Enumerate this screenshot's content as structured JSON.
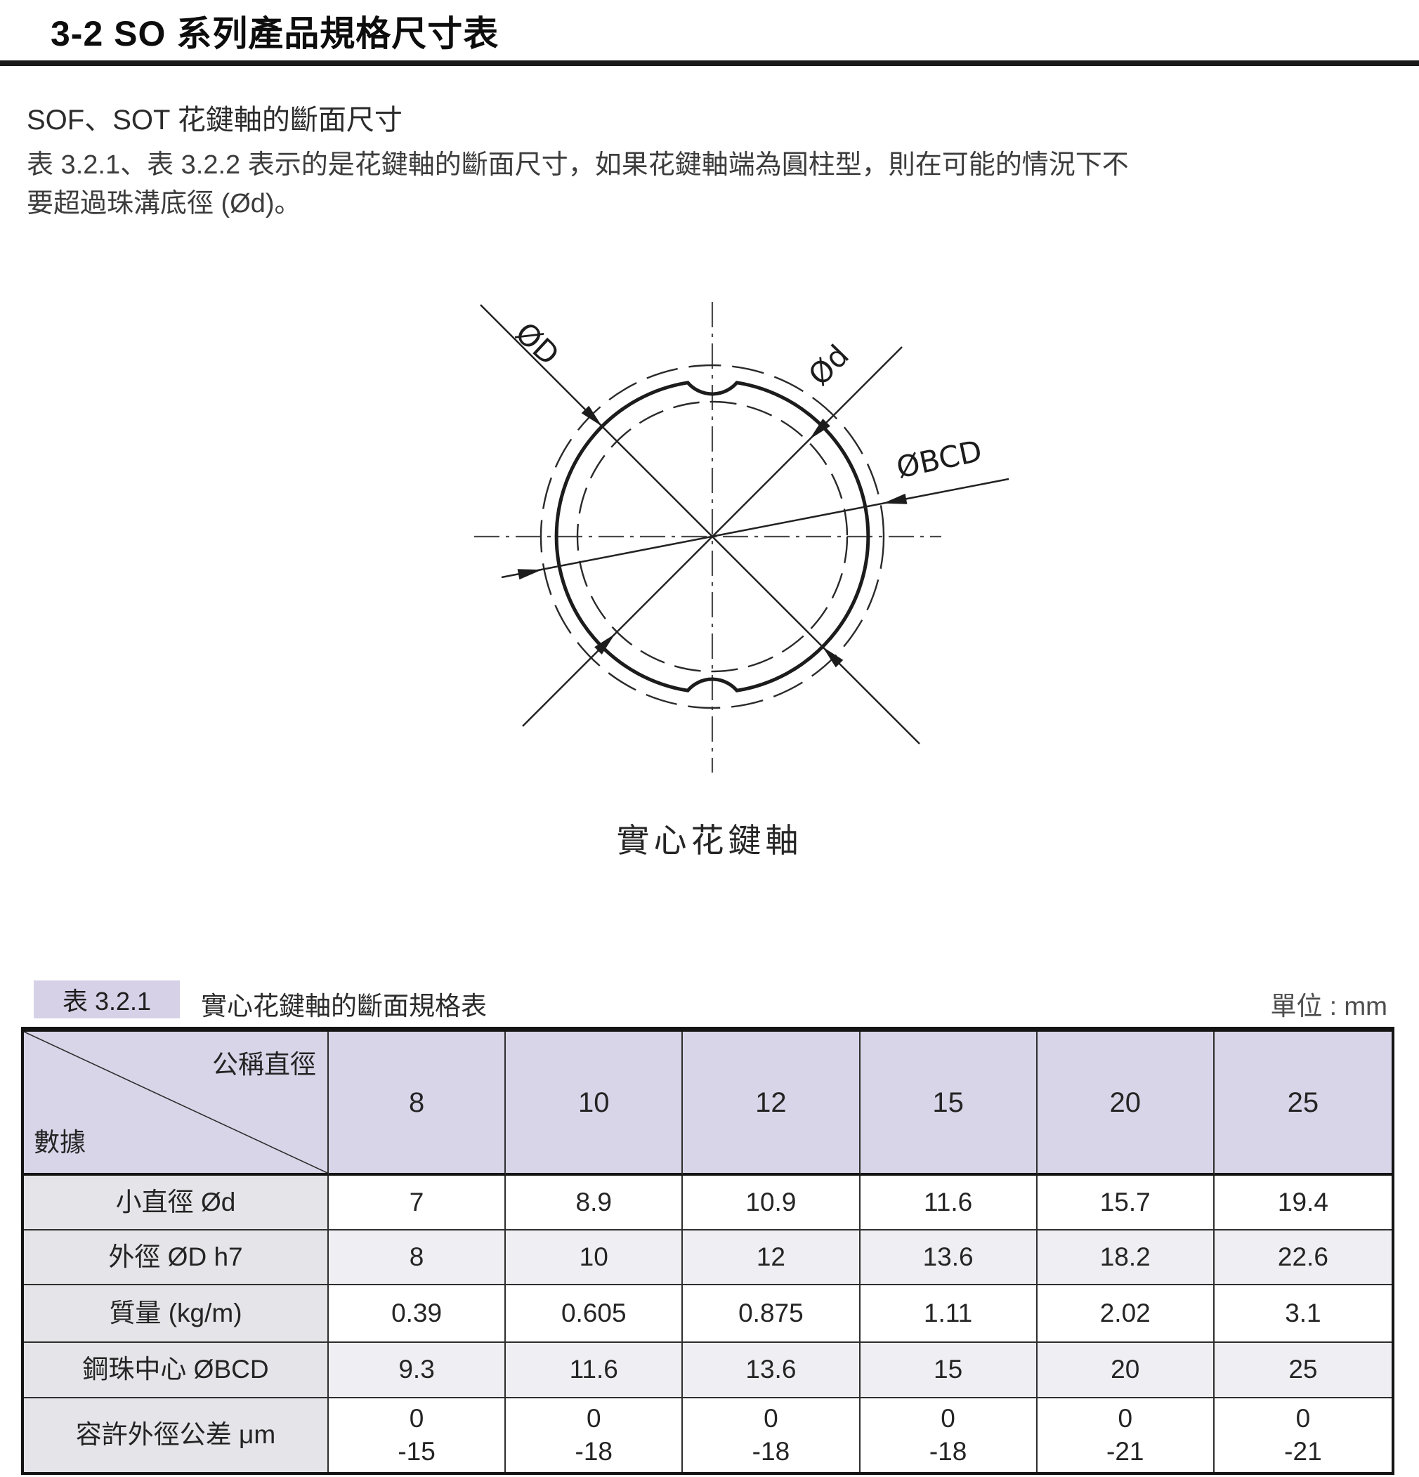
{
  "header": {
    "title": "3-2 SO 系列產品規格尺寸表",
    "subtitle": "SOF、SOT 花鍵軸的斷面尺寸",
    "paragraph": [
      "表 3.2.1、表 3.2.2 表示的是花鍵軸的斷面尺寸，如果花鍵軸端為圓柱型，則在可能的情況下不",
      "要超過珠溝底徑 (Ød)。"
    ]
  },
  "diagram": {
    "caption": "實心花鍵軸",
    "dim_labels": {
      "outer_diameter": "ØD",
      "minor_diameter": "Ød",
      "ball_center_diameter": "ØBCD"
    }
  },
  "spec_table": {
    "tag": "表 3.2.1",
    "title": "實心花鍵軸的斷面規格表",
    "unit_label": "單位 : mm",
    "corner_top_right": "公稱直徑",
    "corner_bottom_left": "數據",
    "columns": [
      "8",
      "10",
      "12",
      "15",
      "20",
      "25"
    ],
    "rows": [
      {
        "label": "小直徑 Ød",
        "shaded": false,
        "values": [
          "7",
          "8.9",
          "10.9",
          "11.6",
          "15.7",
          "19.4"
        ]
      },
      {
        "label": "外徑 ØD h7",
        "shaded": true,
        "values": [
          "8",
          "10",
          "12",
          "13.6",
          "18.2",
          "22.6"
        ]
      },
      {
        "label": "質量 (kg/m)",
        "shaded": false,
        "values": [
          "0.39",
          "0.605",
          "0.875",
          "1.11",
          "2.02",
          "3.1"
        ]
      },
      {
        "label": "鋼珠中心 ØBCD",
        "shaded": true,
        "values": [
          "9.3",
          "11.6",
          "13.6",
          "15",
          "20",
          "25"
        ]
      },
      {
        "label": "容許外徑公差 μm",
        "shaded": false,
        "values": [
          "0\n-15",
          "0\n-18",
          "0\n-18",
          "0\n-18",
          "0\n-21",
          "0\n-21"
        ]
      }
    ]
  },
  "colors": {
    "accent_lavender": "#D9D5E9",
    "chip_lavender": "#D6D1E7",
    "label_gray": "#E5E4E9",
    "row_alt_gray": "#EFEEF2",
    "border_dark": "#2e2e2e"
  }
}
